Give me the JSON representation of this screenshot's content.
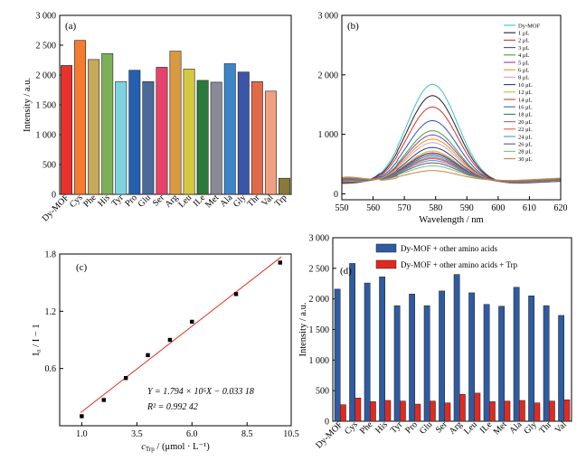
{
  "chart_data": [
    {
      "type": "bar",
      "panel_label": "(a)",
      "xlabel": "",
      "ylabel": "Intensity / a.u.",
      "ylim": [
        0,
        3000
      ],
      "yticks": [
        "0",
        "500",
        "1 000",
        "1 500",
        "2 000",
        "2 500",
        "3 000"
      ],
      "categories": [
        "Dy-MOF",
        "Cys",
        "Phe",
        "His",
        "Tyr",
        "Pro",
        "Glu",
        "Ser",
        "Arg",
        "Leu",
        "ILe",
        "Met",
        "Ala",
        "Gly",
        "Thr",
        "Val",
        "Trp"
      ],
      "values": [
        2160,
        2580,
        2260,
        2360,
        1890,
        2080,
        1890,
        2130,
        2400,
        2100,
        1910,
        1880,
        2190,
        2050,
        1890,
        1730,
        270
      ],
      "colors": [
        "#e8322c",
        "#f47b30",
        "#c8a85a",
        "#7eb05a",
        "#7dd4e0",
        "#2460b0",
        "#4a6a9a",
        "#e8426c",
        "#d89a40",
        "#d4c840",
        "#2a7a3a",
        "#8a8a96",
        "#3a86c8",
        "#3a56a8",
        "#e06a48",
        "#f0a080",
        "#8a7a3a"
      ]
    },
    {
      "type": "line",
      "panel_label": "(b)",
      "xlabel": "Wavelength / nm",
      "ylabel": "",
      "xlim": [
        550,
        620
      ],
      "ylim": [
        -100,
        3000
      ],
      "xticks": [
        "550",
        "560",
        "570",
        "580",
        "590",
        "600",
        "610",
        "620"
      ],
      "yticks": [
        "0",
        "1 000",
        "2 000",
        "3 000"
      ],
      "peak_wavelength": 579,
      "series": [
        {
          "name": "Dy-MOF",
          "peak": 1840,
          "color": "#40c0c8"
        },
        {
          "name": "1 μL",
          "peak": 1650,
          "color": "#222222"
        },
        {
          "name": "2 μL",
          "peak": 1460,
          "color": "#e03030"
        },
        {
          "name": "3 μL",
          "peak": 1230,
          "color": "#3050c0"
        },
        {
          "name": "4 μL",
          "peak": 1060,
          "color": "#40a040"
        },
        {
          "name": "5 μL",
          "peak": 990,
          "color": "#9040a0"
        },
        {
          "name": "6 μL",
          "peak": 920,
          "color": "#f09020"
        },
        {
          "name": "8 μL",
          "peak": 860,
          "color": "#e0a0b0"
        },
        {
          "name": "10 μL",
          "peak": 780,
          "color": "#204080"
        },
        {
          "name": "12 μL",
          "peak": 720,
          "color": "#c0c040"
        },
        {
          "name": "14 μL",
          "peak": 690,
          "color": "#c04040"
        },
        {
          "name": "16 μL",
          "peak": 670,
          "color": "#4060d0"
        },
        {
          "name": "18 μL",
          "peak": 640,
          "color": "#308060"
        },
        {
          "name": "20 μL",
          "peak": 610,
          "color": "#a060c0"
        },
        {
          "name": "22 μL",
          "peak": 590,
          "color": "#e06030"
        },
        {
          "name": "24 μL",
          "peak": 560,
          "color": "#5090d0"
        },
        {
          "name": "26 μL",
          "peak": 520,
          "color": "#606060"
        },
        {
          "name": "28 μL",
          "peak": 470,
          "color": "#80c080"
        },
        {
          "name": "30 μL",
          "peak": 390,
          "color": "#d08040"
        }
      ]
    },
    {
      "type": "scatter",
      "panel_label": "(c)",
      "xlabel_prefix": "c",
      "xlabel_sub": "Trp",
      "xlabel_units": " / (μmol · L⁻¹)",
      "ylabel": "I₀ / I − 1",
      "xlim": [
        0,
        10.5
      ],
      "ylim": [
        0,
        1.8
      ],
      "xticks": [
        "1.0",
        "3.5",
        "6.0",
        "8.5",
        "10.5"
      ],
      "yticks": [
        "0.6",
        "1.2",
        "1.8"
      ],
      "points": {
        "x": [
          1,
          2,
          3,
          4,
          5,
          6,
          8,
          10
        ],
        "y": [
          0.1,
          0.27,
          0.5,
          0.74,
          0.9,
          1.09,
          1.38,
          1.71
        ]
      },
      "fit": {
        "slope": 0.1794,
        "intercept": -0.03318,
        "color": "#e03020"
      },
      "equation": "Y = 1.794 × 10⁵X − 0.033 18",
      "r2": "R² = 0.992 42"
    },
    {
      "type": "bar",
      "panel_label": "(d)",
      "xlabel": "",
      "ylabel": "Intensity / a.u.",
      "ylim": [
        0,
        3000
      ],
      "yticks": [
        "0",
        "500",
        "1 000",
        "1 500",
        "2 000",
        "2 500",
        "3 000"
      ],
      "categories": [
        "Dy-MOF",
        "Cys",
        "Phe",
        "His",
        "Tyr",
        "Pro",
        "Glu",
        "Ser",
        "Arg",
        "Leu",
        "ILe",
        "Met",
        "Ala",
        "Gly",
        "Thr",
        "Val"
      ],
      "series": [
        {
          "name": "Dy-MOF + other amino acids",
          "color": "#2f5ba0",
          "values": [
            2160,
            2580,
            2260,
            2360,
            1890,
            2080,
            1890,
            2130,
            2400,
            2100,
            1910,
            1880,
            2190,
            2050,
            1890,
            1730
          ]
        },
        {
          "name": "Dy-MOF + other amino acids + Trp",
          "color": "#e02a20",
          "values": [
            270,
            380,
            320,
            340,
            330,
            280,
            330,
            300,
            440,
            460,
            320,
            330,
            340,
            300,
            330,
            350
          ]
        }
      ]
    }
  ]
}
